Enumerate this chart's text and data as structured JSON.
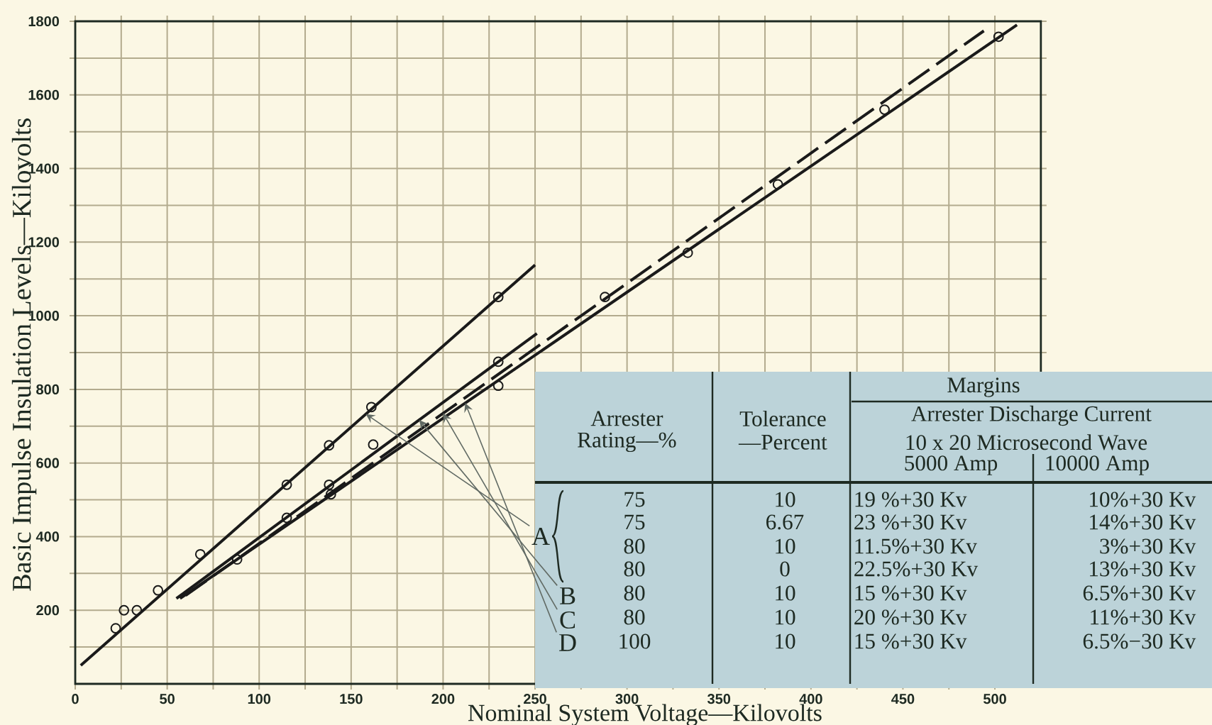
{
  "chart_data": {
    "type": "line",
    "xlabel": "Nominal System Voltage—Kilovolts",
    "ylabel": "Basic Impulse Insulation Levels—Kilovolts",
    "xlim": [
      0,
      525
    ],
    "ylim": [
      0,
      1800
    ],
    "xticks": [
      0,
      {
        "value": 25,
        "label": null
      },
      50,
      {
        "value": 75,
        "label": null
      },
      100,
      {
        "value": 125,
        "label": null
      },
      150,
      {
        "value": 175,
        "label": null
      },
      200,
      {
        "value": 225,
        "label": null
      },
      250,
      {
        "value": 275,
        "label": null
      },
      300,
      {
        "value": 325,
        "label": null
      },
      350,
      {
        "value": 375,
        "label": null
      },
      400,
      {
        "value": 425,
        "label": null
      },
      450,
      {
        "value": 475,
        "label": null
      },
      500
    ],
    "yticks": [
      {
        "value": 100,
        "label": null
      },
      200,
      {
        "value": 300,
        "label": null
      },
      400,
      {
        "value": 500,
        "label": null
      },
      600,
      {
        "value": 700,
        "label": null
      },
      800,
      {
        "value": 900,
        "label": null
      },
      1000,
      {
        "value": 1100,
        "label": null
      },
      1200,
      {
        "value": 1300,
        "label": null
      },
      1400,
      {
        "value": 1500,
        "label": null
      },
      1600,
      {
        "value": 1700,
        "label": null
      },
      1800
    ],
    "grid": true,
    "series": [
      {
        "x": [
          3,
          250
        ],
        "values": [
          50,
          1138
        ],
        "color": "#1a1a1a"
      },
      {
        "x": [
          55,
          251
        ],
        "values": [
          232,
          952
        ],
        "color": "#1a1a1a"
      },
      {
        "x": [
          60,
          494
        ],
        "values": [
          240,
          1774
        ],
        "color": "#1a1a1a",
        "line_style": "dashed"
      },
      {
        "x": [
          57,
          512
        ],
        "values": [
          232,
          1790
        ],
        "color": "#1a1a1a"
      },
      {
        "type": "scatter",
        "marker": "circle",
        "color": "#1a1a1a",
        "x": [
          22,
          26.5,
          33.5,
          45,
          68,
          115,
          138,
          161,
          230,
          88,
          115,
          138,
          139,
          162,
          230,
          230,
          288,
          333,
          382,
          440,
          502
        ],
        "values": [
          151,
          200,
          200,
          254,
          352,
          541,
          648,
          752,
          1051,
          338,
          451,
          541,
          515,
          650,
          875,
          810,
          1051,
          1171,
          1357,
          1560,
          1758
        ]
      }
    ],
    "annotations": [
      {
        "text": "A",
        "x": 158,
        "y": 733
      },
      {
        "text": "B",
        "x": 187,
        "y": 717
      },
      {
        "text": "C",
        "x": 200,
        "y": 735
      },
      {
        "text": "D",
        "x": 212,
        "y": 763
      },
      "Arrester",
      "Rating—%",
      "Tolerance",
      "—Percent",
      "Margins",
      "Arrester Discharge Current",
      "10 x 20 Microsecond Wave",
      "5000 Amp",
      "10000 Amp",
      "75",
      "10",
      "19 %+30 Kv",
      "10%+30 Kv",
      "75",
      "6.67",
      "23 %+30 Kv",
      "14%+30 Kv",
      "80",
      "10",
      "11.5%+30 Kv",
      "3%+30 Kv",
      "80",
      "0",
      "22.5%+30 Kv",
      "13%+30 Kv",
      "80",
      "10",
      "15 %+30 Kv",
      "6.5%+30 Kv",
      "80",
      "10",
      "20 %+30 Kv",
      "11%+30 Kv",
      "100",
      "10",
      "15 %+30 Kv",
      "6.5%−30 Kv"
    ]
  }
}
